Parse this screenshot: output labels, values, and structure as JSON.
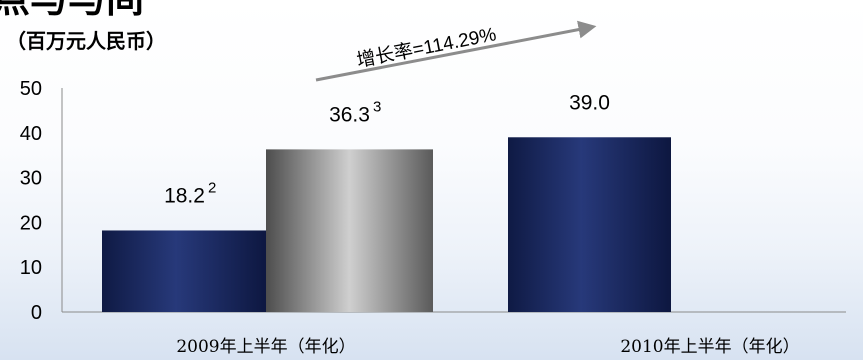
{
  "title": "点与与间",
  "unit_label": "（百万元人民币）",
  "growth_label": "增长率=114.29%",
  "colors": {
    "navy_bar": "#1e2f6b",
    "gray_bar": "#9a9a9a",
    "arrow": "#8c8c8c"
  },
  "chart_data": {
    "type": "bar",
    "categories": [
      "2009年上半年（年化）",
      "2010年上半年（年化）"
    ],
    "ylim": [
      0,
      50
    ],
    "yticks": [
      0,
      10,
      20,
      30,
      40,
      50
    ],
    "ytick_labels": [
      "0",
      "10",
      "20",
      "30",
      "40",
      "50"
    ],
    "grid": false,
    "legend": "none",
    "bars": [
      {
        "category_index": 0,
        "value": 18.2,
        "label": "18.2",
        "footnote": "2",
        "color": "navy"
      },
      {
        "category_index": 0,
        "value": 36.3,
        "label": "36.3",
        "footnote": "3",
        "color": "gray"
      },
      {
        "category_index": 1,
        "value": 39.0,
        "label": "39.0",
        "footnote": "",
        "color": "navy"
      }
    ]
  }
}
